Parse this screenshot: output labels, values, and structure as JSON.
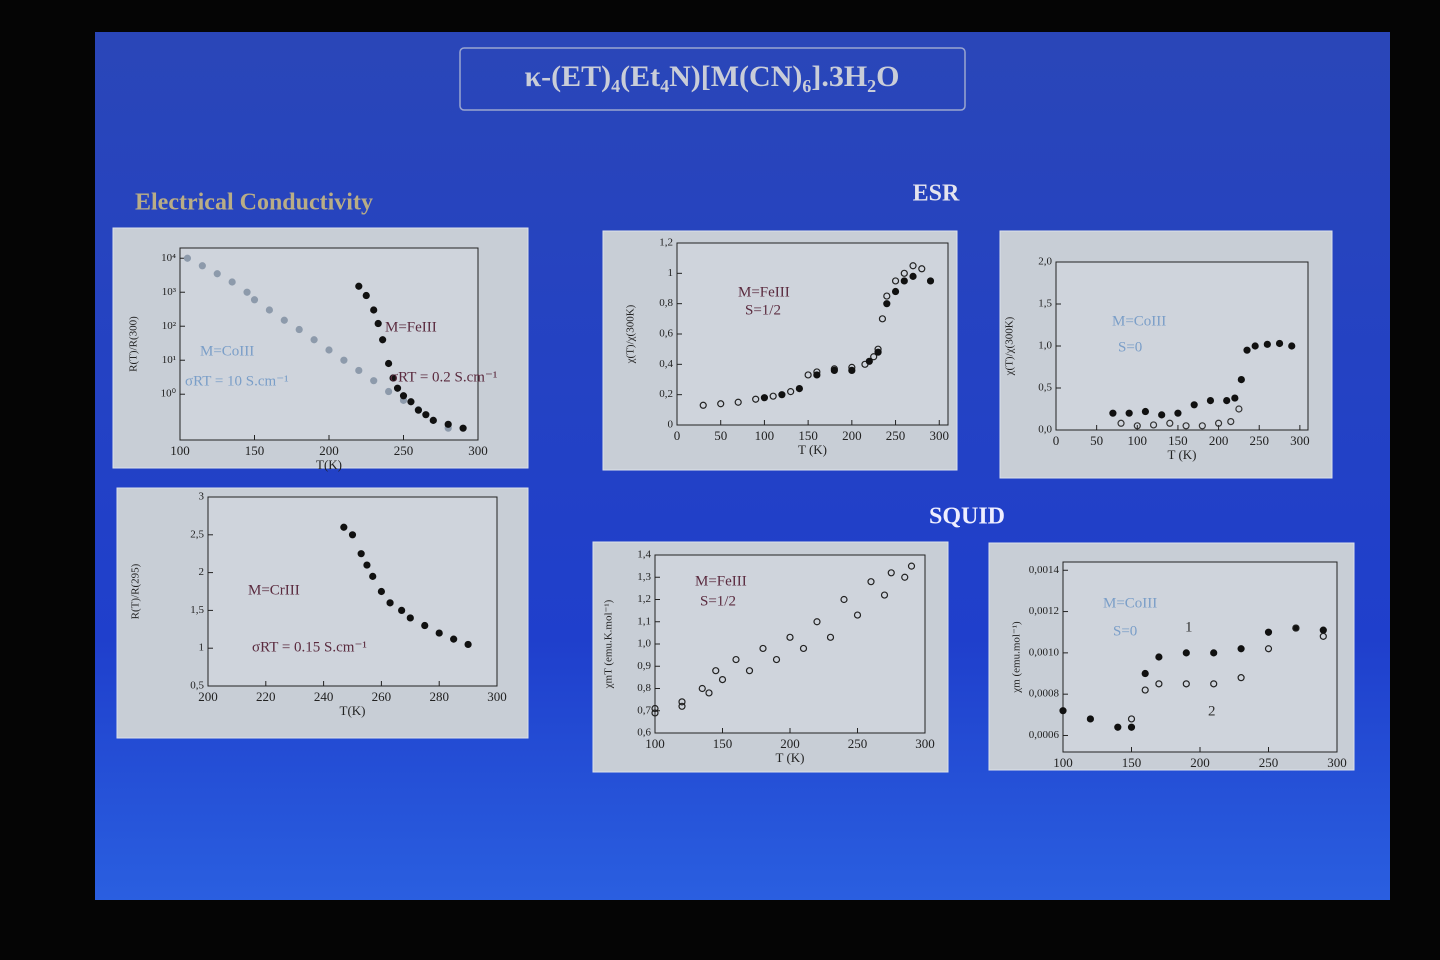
{
  "title": "κ-(ET)₄(Et₄N)[M(CN)₆].3H₂O",
  "sections": [
    "Electrical Conductivity",
    "ESR",
    "SQUID"
  ],
  "chart_data": [
    {
      "type": "scatter",
      "ylabel": "R(T)/R(300)",
      "xlabel": "T(K)",
      "yscale": "log",
      "xlim": [
        100,
        300
      ],
      "xticks": [
        100,
        150,
        200,
        250,
        300
      ],
      "ylim": [
        0.045,
        20000
      ],
      "yticks": [
        {
          "value": 1,
          "label": "10⁰"
        },
        {
          "value": 10,
          "label": "10¹"
        },
        {
          "value": 100,
          "label": "10²"
        },
        {
          "value": 1000,
          "label": "10³"
        },
        {
          "value": 10000,
          "label": "10⁴"
        }
      ],
      "annotations": [
        {
          "text": "M=CoIII",
          "color": "#7a9ec8"
        },
        {
          "text": "σRT = 10 S.cm⁻¹",
          "color": "#7a9ec8"
        },
        {
          "text": "M=FeIII",
          "color": "#5a2a3e"
        },
        {
          "text": "σRT = 0.2 S.cm⁻¹",
          "color": "#5a2a3e"
        }
      ],
      "series": [
        {
          "color": "#8d9aab",
          "marker": "filled",
          "x": [
            105,
            115,
            125,
            135,
            145,
            150,
            160,
            170,
            180,
            190,
            200,
            210,
            220,
            230,
            240,
            250,
            260,
            270,
            280
          ],
          "values": [
            10000,
            6000,
            3500,
            2000,
            1000,
            600,
            300,
            150,
            80,
            40,
            20,
            10,
            5,
            2.5,
            1.2,
            0.66,
            0.35,
            0.17,
            0.1
          ]
        },
        {
          "color": "#111111",
          "marker": "filled",
          "x": [
            220,
            225,
            230,
            233,
            236,
            240,
            243,
            246,
            250,
            255,
            260,
            265,
            270,
            280,
            290
          ],
          "values": [
            1500,
            800,
            300,
            120,
            40,
            8,
            3,
            1.5,
            0.9,
            0.6,
            0.34,
            0.25,
            0.17,
            0.13,
            0.1
          ]
        }
      ]
    },
    {
      "type": "scatter",
      "ylabel": "R(T)/R(295)",
      "xlabel": "T(K)",
      "xlim": [
        200,
        300
      ],
      "xticks": [
        200,
        220,
        240,
        260,
        280,
        300
      ],
      "ylim": [
        0.5,
        3
      ],
      "yticks": [
        {
          "value": 0.5,
          "label": "0,5"
        },
        1,
        {
          "value": 1.5,
          "label": "1,5"
        },
        2,
        {
          "value": 2.5,
          "label": "2,5"
        },
        3
      ],
      "annotations": [
        {
          "text": "M=CrIII",
          "color": "#5a2a3e"
        },
        {
          "text": "σRT = 0.15 S.cm⁻¹",
          "color": "#5a2a3e"
        }
      ],
      "series": [
        {
          "color": "#111111",
          "marker": "filled",
          "x": [
            247,
            250,
            253,
            255,
            257,
            260,
            263,
            267,
            270,
            275,
            280,
            285,
            290
          ],
          "values": [
            2.6,
            2.5,
            2.25,
            2.1,
            1.95,
            1.75,
            1.6,
            1.5,
            1.4,
            1.3,
            1.2,
            1.12,
            1.05
          ]
        }
      ]
    },
    {
      "type": "scatter",
      "ylabel": "χ(T)/χ(300K)",
      "xlabel": "T (K)",
      "xlim": [
        0,
        310
      ],
      "xticks": [
        0,
        50,
        100,
        150,
        200,
        250,
        300
      ],
      "ylim": [
        0,
        1.2
      ],
      "yticks": [
        0,
        {
          "value": 0.2,
          "label": "0,2"
        },
        {
          "value": 0.4,
          "label": "0,4"
        },
        {
          "value": 0.6,
          "label": "0,6"
        },
        {
          "value": 0.8,
          "label": "0,8"
        },
        1,
        {
          "value": 1.2,
          "label": "1,2"
        }
      ],
      "annotations": [
        {
          "text": "M=FeIII",
          "color": "#5a2a3e"
        },
        {
          "text": "S=1/2",
          "color": "#5a2a3e"
        }
      ],
      "series": [
        {
          "color": "#222222",
          "marker": "open",
          "x": [
            30,
            50,
            70,
            90,
            110,
            130,
            150,
            160,
            180,
            200,
            215,
            225,
            230,
            235,
            240,
            250,
            260,
            270,
            280
          ],
          "values": [
            0.13,
            0.14,
            0.15,
            0.17,
            0.19,
            0.22,
            0.33,
            0.35,
            0.37,
            0.38,
            0.4,
            0.45,
            0.5,
            0.7,
            0.85,
            0.95,
            1.0,
            1.05,
            1.03
          ]
        },
        {
          "color": "#111111",
          "marker": "filled",
          "x": [
            100,
            120,
            140,
            160,
            180,
            200,
            220,
            230,
            240,
            250,
            260,
            270,
            290
          ],
          "values": [
            0.18,
            0.2,
            0.24,
            0.33,
            0.36,
            0.36,
            0.42,
            0.48,
            0.8,
            0.88,
            0.95,
            0.98,
            0.95
          ]
        }
      ]
    },
    {
      "type": "scatter",
      "ylabel": "χ(T)/χ(300K)",
      "xlabel": "T (K)",
      "xlim": [
        0,
        310
      ],
      "xticks": [
        0,
        50,
        100,
        150,
        200,
        250,
        300
      ],
      "ylim": [
        0,
        2
      ],
      "yticks": [
        {
          "value": 0,
          "label": "0,0"
        },
        {
          "value": 0.5,
          "label": "0,5"
        },
        {
          "value": 1,
          "label": "1,0"
        },
        {
          "value": 1.5,
          "label": "1,5"
        },
        {
          "value": 2,
          "label": "2,0"
        }
      ],
      "annotations": [
        {
          "text": "M=CoIII",
          "color": "#7a9ec8"
        },
        {
          "text": "S=0",
          "color": "#7a9ec8"
        }
      ],
      "series": [
        {
          "color": "#111111",
          "marker": "filled",
          "x": [
            70,
            90,
            110,
            130,
            150,
            170,
            190,
            210,
            220,
            228,
            235,
            245,
            260,
            275,
            290
          ],
          "values": [
            0.2,
            0.2,
            0.22,
            0.18,
            0.2,
            0.3,
            0.35,
            0.35,
            0.38,
            0.6,
            0.95,
            1.0,
            1.02,
            1.03,
            1.0
          ]
        },
        {
          "color": "#333333",
          "marker": "open",
          "x": [
            80,
            100,
            120,
            140,
            160,
            180,
            200,
            215,
            225
          ],
          "values": [
            0.08,
            0.05,
            0.06,
            0.08,
            0.05,
            0.05,
            0.08,
            0.1,
            0.25
          ]
        }
      ]
    },
    {
      "type": "scatter",
      "ylabel": "χmT (emu.K.mol⁻¹)",
      "xlabel": "T (K)",
      "xlim": [
        100,
        300
      ],
      "xticks": [
        100,
        150,
        200,
        250,
        300
      ],
      "ylim": [
        0.6,
        1.4
      ],
      "yticks": [
        {
          "value": 0.6,
          "label": "0,6"
        },
        {
          "value": 0.7,
          "label": "0,7"
        },
        {
          "value": 0.8,
          "label": "0,8"
        },
        {
          "value": 0.9,
          "label": "0,9"
        },
        {
          "value": 1.0,
          "label": "1,0"
        },
        {
          "value": 1.1,
          "label": "1,1"
        },
        {
          "value": 1.2,
          "label": "1,2"
        },
        {
          "value": 1.3,
          "label": "1,3"
        },
        {
          "value": 1.4,
          "label": "1,4"
        }
      ],
      "annotations": [
        {
          "text": "M=FeIII",
          "color": "#5a2a3e"
        },
        {
          "text": "S=1/2",
          "color": "#5a2a3e"
        }
      ],
      "series": [
        {
          "color": "#222222",
          "marker": "open",
          "x": [
            100,
            120,
            135,
            145,
            160,
            180,
            200,
            220,
            240,
            260,
            275,
            290
          ],
          "values": [
            0.71,
            0.74,
            0.8,
            0.88,
            0.93,
            0.98,
            1.03,
            1.1,
            1.2,
            1.28,
            1.32,
            1.35
          ]
        },
        {
          "color": "#222222",
          "marker": "open",
          "x": [
            100,
            120,
            140,
            150,
            170,
            190,
            210,
            230,
            250,
            270,
            285
          ],
          "values": [
            0.69,
            0.72,
            0.78,
            0.84,
            0.88,
            0.93,
            0.98,
            1.03,
            1.13,
            1.22,
            1.3
          ]
        }
      ]
    },
    {
      "type": "scatter",
      "ylabel": "χm (emu.mol⁻¹)",
      "xlim": [
        100,
        300
      ],
      "xticks": [
        100,
        150,
        200,
        250,
        300
      ],
      "ylim": [
        0.00052,
        0.00144
      ],
      "yticks": [
        {
          "value": 0.0006,
          "label": "0,0006"
        },
        {
          "value": 0.0008,
          "label": "0,0008"
        },
        {
          "value": 0.001,
          "label": "0,0010"
        },
        {
          "value": 0.0012,
          "label": "0,0012"
        },
        {
          "value": 0.0014,
          "label": "0,0014"
        }
      ],
      "annotations": [
        {
          "text": "M=CoIII",
          "color": "#7a9ec8"
        },
        {
          "text": "S=0",
          "color": "#7a9ec8"
        },
        {
          "text": "1",
          "color": "#333333"
        },
        {
          "text": "2",
          "color": "#333333"
        }
      ],
      "series": [
        {
          "color": "#111111",
          "marker": "filled",
          "x": [
            100,
            120,
            140,
            150,
            160,
            170,
            190,
            210,
            230,
            250,
            270,
            290
          ],
          "values": [
            0.00072,
            0.00068,
            0.00064,
            0.00064,
            0.0009,
            0.00098,
            0.001,
            0.001,
            0.00102,
            0.0011,
            0.00112,
            0.00111
          ]
        },
        {
          "color": "#222222",
          "marker": "open",
          "x": [
            150,
            160,
            170,
            190,
            210,
            230,
            250,
            270,
            290
          ],
          "values": [
            0.00068,
            0.00082,
            0.00085,
            0.00085,
            0.00085,
            0.00088,
            0.00102,
            0.00112,
            0.00108
          ]
        }
      ]
    }
  ]
}
